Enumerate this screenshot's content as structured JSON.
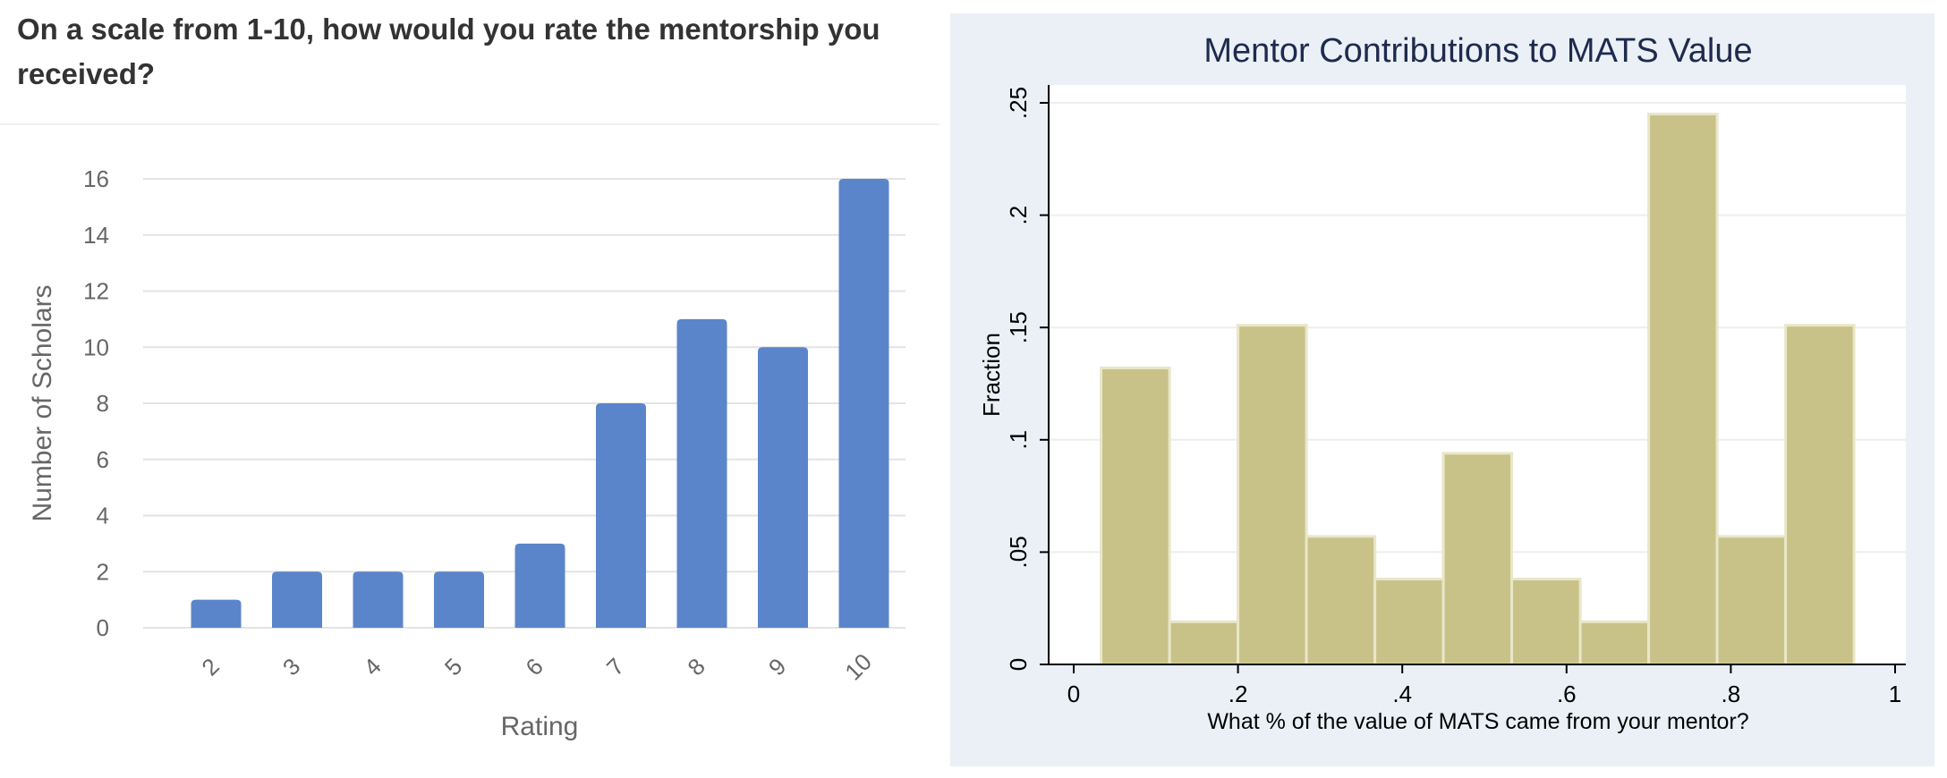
{
  "question": {
    "text": "On a scale from 1-10, how would you rate the mentorship you received?"
  },
  "colors": {
    "left_bar": "#5b85ca",
    "right_bar": "#c8c288",
    "right_bar_outline": "#e9e6c9",
    "right_panel_bg": "#eaf0f5",
    "right_title": "#1e2a4e"
  },
  "chart_data": [
    {
      "type": "bar",
      "title": "",
      "categories": [
        "2",
        "3",
        "4",
        "5",
        "6",
        "7",
        "8",
        "9",
        "10"
      ],
      "values": [
        1,
        2,
        2,
        2,
        3,
        8,
        11,
        10,
        16
      ],
      "xlabel": "Rating",
      "ylabel": "Number of Scholars",
      "ylim": [
        0,
        16
      ],
      "yticks": [
        "0",
        "2",
        "4",
        "6",
        "8",
        "10",
        "12",
        "14",
        "16"
      ],
      "grid": true
    },
    {
      "type": "bar",
      "title": "Mentor Contributions to MATS Value",
      "xlabel": "What % of the value of MATS came from your mentor?",
      "ylabel": "Fraction",
      "bins": [
        [
          0.0333,
          0.1167
        ],
        [
          0.1167,
          0.2
        ],
        [
          0.2,
          0.2833
        ],
        [
          0.2833,
          0.3667
        ],
        [
          0.3667,
          0.45
        ],
        [
          0.45,
          0.5333
        ],
        [
          0.5333,
          0.6167
        ],
        [
          0.6167,
          0.7
        ],
        [
          0.7,
          0.7833
        ],
        [
          0.7833,
          0.8667
        ],
        [
          0.8667,
          0.95
        ]
      ],
      "values": [
        0.132,
        0.019,
        0.151,
        0.057,
        0.038,
        0.094,
        0.038,
        0.019,
        0.245,
        0.057,
        0.151
      ],
      "xlim": [
        0,
        1
      ],
      "ylim": [
        0,
        0.25
      ],
      "xticks": [
        "0",
        ".2",
        ".4",
        ".6",
        ".8",
        "1"
      ],
      "yticks": [
        "0",
        ".05",
        ".1",
        ".15",
        ".2",
        ".25"
      ],
      "grid": true
    }
  ]
}
